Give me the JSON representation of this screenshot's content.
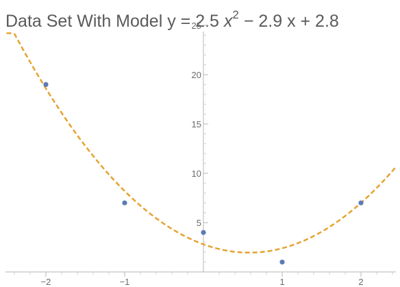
{
  "chart_data": {
    "type": "scatter",
    "title": {
      "prefix": "Data Set With Model y = 2.5 ",
      "var_x2": "x",
      "exponent": "2",
      "suffix": " − 2.9 x + 2.8"
    },
    "xlabel": "",
    "ylabel": "",
    "xlim": [
      -2.5,
      2.45
    ],
    "ylim": [
      0,
      25
    ],
    "x_ticks": [
      -2,
      -1,
      1,
      2
    ],
    "x_tick_labels": [
      "−2",
      "−1",
      "1",
      "2"
    ],
    "y_ticks": [
      5,
      10,
      15,
      20,
      25
    ],
    "y_tick_labels": [
      "5",
      "10",
      "15",
      "20",
      "25"
    ],
    "grid": false,
    "legend": "none",
    "series": [
      {
        "type": "scatter",
        "x": [
          -2,
          -1,
          0,
          1,
          2
        ],
        "y": [
          19,
          7,
          4,
          1,
          7
        ],
        "color": "#5b7bb5"
      },
      {
        "type": "line",
        "style": "dashed",
        "model": {
          "a": 2.5,
          "b": -2.9,
          "c": 2.8
        },
        "color": "#e6a22e"
      }
    ]
  }
}
